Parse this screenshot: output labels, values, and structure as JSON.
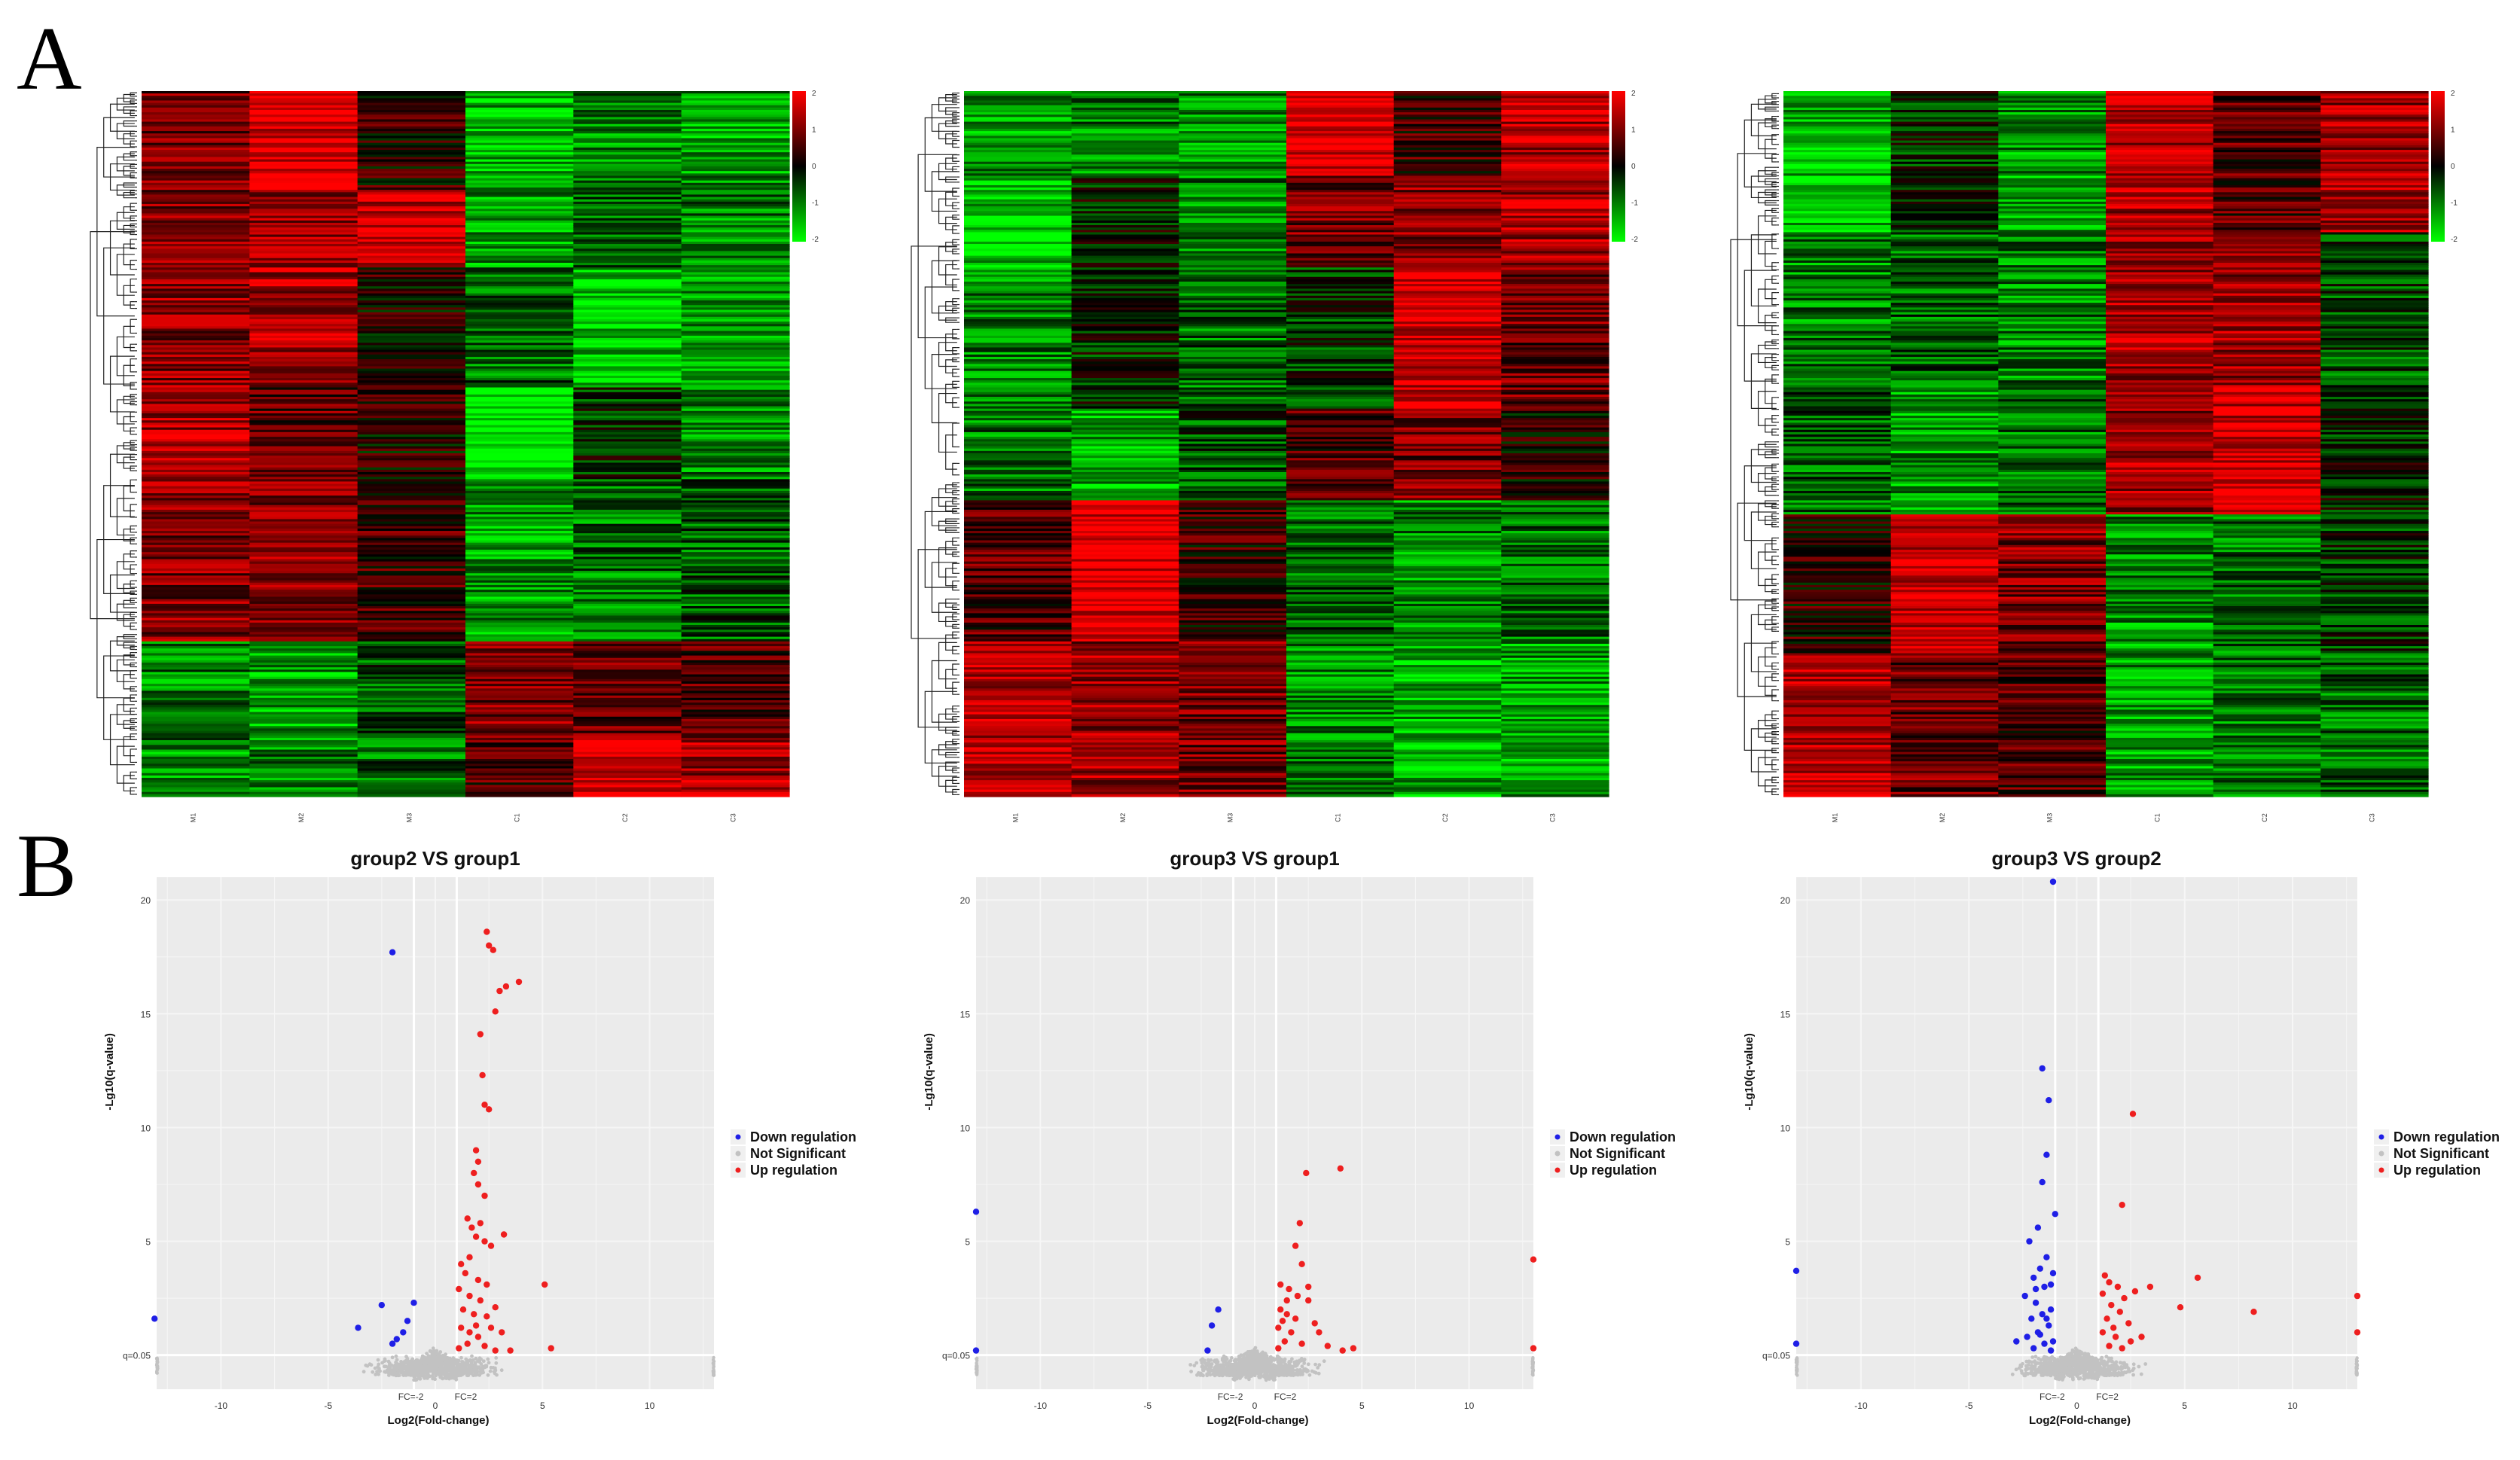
{
  "panels": {
    "a": "A",
    "b": "B"
  },
  "chart_data": [
    {
      "type": "heatmap",
      "title": "",
      "columns": [
        "M1",
        "M2",
        "M3",
        "C1",
        "C2",
        "C3"
      ],
      "color_scale": {
        "min": -2,
        "max": 2,
        "low": "#00ff00",
        "mid": "#000000",
        "high": "#ff0000"
      },
      "colorbar_ticks": [
        "2",
        "1",
        "0",
        "-1",
        "-2"
      ],
      "row_count": 300,
      "blocks": [
        {
          "rows": [
            0,
            0.14
          ],
          "values": [
            0.9,
            1.8,
            0.3,
            -1.4,
            -1.0,
            -1.2
          ]
        },
        {
          "rows": [
            0.14,
            0.25
          ],
          "values": [
            1.0,
            1.2,
            1.6,
            -1.2,
            -0.8,
            -1.0
          ]
        },
        {
          "rows": [
            0.25,
            0.42
          ],
          "values": [
            1.1,
            1.3,
            0.2,
            -0.8,
            -1.6,
            -1.3
          ]
        },
        {
          "rows": [
            0.42,
            0.55
          ],
          "values": [
            1.3,
            0.7,
            0.2,
            -2.0,
            -0.3,
            -1.1
          ]
        },
        {
          "rows": [
            0.55,
            0.78
          ],
          "values": [
            1.0,
            1.1,
            0.5,
            -1.2,
            -0.9,
            -0.7
          ]
        },
        {
          "rows": [
            0.78,
            0.92
          ],
          "values": [
            -1.0,
            -1.3,
            -0.6,
            1.0,
            0.8,
            0.6
          ]
        },
        {
          "rows": [
            0.92,
            1.0
          ],
          "values": [
            -1.2,
            -1.0,
            -0.8,
            0.5,
            1.7,
            1.3
          ]
        }
      ]
    },
    {
      "type": "heatmap",
      "title": "",
      "columns": [
        "M1",
        "M2",
        "M3",
        "C1",
        "C2",
        "C3"
      ],
      "color_scale": {
        "min": -2,
        "max": 2,
        "low": "#00ff00",
        "mid": "#000000",
        "high": "#ff0000"
      },
      "colorbar_ticks": [
        "2",
        "1",
        "0",
        "-1",
        "-2"
      ],
      "row_count": 300,
      "blocks": [
        {
          "rows": [
            0,
            0.12
          ],
          "values": [
            -1.2,
            -1.0,
            -1.1,
            1.8,
            0.5,
            1.4
          ]
        },
        {
          "rows": [
            0.12,
            0.25
          ],
          "values": [
            -1.6,
            -0.2,
            -1.0,
            0.9,
            1.1,
            1.3
          ]
        },
        {
          "rows": [
            0.25,
            0.45
          ],
          "values": [
            -1.0,
            -0.3,
            -0.8,
            -0.4,
            1.7,
            0.8
          ]
        },
        {
          "rows": [
            0.45,
            0.58
          ],
          "values": [
            -0.9,
            -1.4,
            -0.6,
            0.6,
            0.9,
            0.2
          ]
        },
        {
          "rows": [
            0.58,
            0.78
          ],
          "values": [
            0.6,
            1.8,
            0.4,
            -0.8,
            -1.1,
            -0.9
          ]
        },
        {
          "rows": [
            0.78,
            1.0
          ],
          "values": [
            1.5,
            1.2,
            0.9,
            -1.0,
            -1.4,
            -1.2
          ]
        }
      ]
    },
    {
      "type": "heatmap",
      "title": "",
      "columns": [
        "M1",
        "M2",
        "M3",
        "C1",
        "C2",
        "C3"
      ],
      "color_scale": {
        "min": -2,
        "max": 2,
        "low": "#00ff00",
        "mid": "#000000",
        "high": "#ff0000"
      },
      "colorbar_ticks": [
        "2",
        "1",
        "0",
        "-1",
        "-2"
      ],
      "row_count": 300,
      "blocks": [
        {
          "rows": [
            0,
            0.2
          ],
          "values": [
            -1.4,
            -0.3,
            -1.2,
            1.4,
            0.6,
            1.2
          ]
        },
        {
          "rows": [
            0.2,
            0.42
          ],
          "values": [
            -1.0,
            -0.8,
            -1.0,
            1.3,
            1.2,
            -0.6
          ]
        },
        {
          "rows": [
            0.42,
            0.6
          ],
          "values": [
            -0.8,
            -1.2,
            -0.9,
            1.2,
            1.6,
            -0.2
          ]
        },
        {
          "rows": [
            0.6,
            0.8
          ],
          "values": [
            0.3,
            1.6,
            1.0,
            -1.1,
            -0.9,
            -0.4
          ]
        },
        {
          "rows": [
            0.8,
            1.0
          ],
          "values": [
            1.5,
            0.8,
            0.6,
            -1.2,
            -1.0,
            -0.8
          ]
        }
      ]
    },
    {
      "type": "scatter",
      "title": "group2 VS group1",
      "xlabel": "Log2(Fold-change)",
      "ylabel": "-Lg10(q-value)",
      "xlim": [
        -13,
        13
      ],
      "ylim": [
        -1.5,
        21
      ],
      "xticks": [
        -10,
        -5,
        0,
        5,
        10
      ],
      "yticks": [
        5,
        10,
        15,
        20
      ],
      "ytick_labels": [
        "5",
        "10",
        "15",
        "20"
      ],
      "q_line": 0,
      "q_label": "q=0.05",
      "fc_lines": [
        -1,
        1
      ],
      "fc_labels": [
        "FC=-2",
        "FC=2"
      ],
      "legend": [
        "Down regulation",
        "Not Significant",
        "Up regulation"
      ],
      "series": [
        {
          "name": "Down regulation",
          "color": "#1f1fe6",
          "points": [
            [
              -2.0,
              17.7
            ],
            [
              -2.5,
              2.2
            ],
            [
              -3.6,
              1.2
            ],
            [
              -2.0,
              0.5
            ],
            [
              -1.5,
              1.0
            ],
            [
              -1.3,
              1.5
            ],
            [
              -1.8,
              0.7
            ],
            [
              -1.0,
              2.3
            ],
            [
              -13.1,
              1.6
            ]
          ]
        },
        {
          "name": "Up regulation",
          "color": "#ee1f1f",
          "points": [
            [
              2.4,
              18.6
            ],
            [
              2.7,
              17.8
            ],
            [
              2.5,
              18.0
            ],
            [
              3.0,
              16.0
            ],
            [
              3.3,
              16.2
            ],
            [
              3.9,
              16.4
            ],
            [
              2.8,
              15.1
            ],
            [
              2.1,
              14.1
            ],
            [
              2.2,
              12.3
            ],
            [
              2.3,
              11.0
            ],
            [
              2.5,
              10.8
            ],
            [
              1.9,
              9.0
            ],
            [
              2.0,
              8.5
            ],
            [
              1.8,
              8.0
            ],
            [
              2.0,
              7.5
            ],
            [
              2.3,
              7.0
            ],
            [
              1.5,
              6.0
            ],
            [
              1.7,
              5.6
            ],
            [
              2.1,
              5.8
            ],
            [
              1.9,
              5.2
            ],
            [
              2.3,
              5.0
            ],
            [
              3.2,
              5.3
            ],
            [
              2.6,
              4.8
            ],
            [
              1.6,
              4.3
            ],
            [
              1.2,
              4.0
            ],
            [
              1.4,
              3.6
            ],
            [
              2.0,
              3.3
            ],
            [
              2.4,
              3.1
            ],
            [
              1.1,
              2.9
            ],
            [
              1.6,
              2.6
            ],
            [
              2.1,
              2.4
            ],
            [
              1.3,
              2.0
            ],
            [
              1.8,
              1.8
            ],
            [
              2.4,
              1.7
            ],
            [
              2.8,
              2.1
            ],
            [
              1.2,
              1.2
            ],
            [
              1.6,
              1.0
            ],
            [
              2.0,
              0.8
            ],
            [
              1.5,
              0.5
            ],
            [
              2.3,
              0.4
            ],
            [
              1.1,
              0.3
            ],
            [
              2.8,
              0.2
            ],
            [
              3.5,
              0.2
            ],
            [
              5.4,
              0.3
            ],
            [
              5.1,
              3.1
            ],
            [
              3.1,
              1.0
            ],
            [
              1.9,
              1.3
            ],
            [
              2.6,
              1.2
            ]
          ]
        },
        {
          "name": "Not Significant",
          "color": "#bfbfbf",
          "points": []
        }
      ]
    },
    {
      "type": "scatter",
      "title": "group3 VS group1",
      "xlabel": "Log2(Fold-change)",
      "ylabel": "-Lg10(q-value)",
      "xlim": [
        -13,
        13
      ],
      "ylim": [
        -1.5,
        21
      ],
      "xticks": [
        -10,
        -5,
        0,
        5,
        10
      ],
      "yticks": [
        5,
        10,
        15,
        20
      ],
      "ytick_labels": [
        "5",
        "10",
        "15",
        "20"
      ],
      "q_line": 0,
      "q_label": "q=0.05",
      "fc_lines": [
        -1,
        1
      ],
      "fc_labels": [
        "FC=-2",
        "FC=2"
      ],
      "legend": [
        "Down regulation",
        "Not Significant",
        "Up regulation"
      ],
      "series": [
        {
          "name": "Down regulation",
          "color": "#1f1fe6",
          "points": [
            [
              -13.0,
              6.3
            ],
            [
              -1.7,
              2.0
            ],
            [
              -2.0,
              1.3
            ],
            [
              -2.2,
              0.2
            ],
            [
              -13.0,
              0.2
            ]
          ]
        },
        {
          "name": "Up regulation",
          "color": "#ee1f1f",
          "points": [
            [
              2.4,
              8.0
            ],
            [
              4.0,
              8.2
            ],
            [
              2.1,
              5.8
            ],
            [
              1.9,
              4.8
            ],
            [
              2.2,
              4.0
            ],
            [
              1.2,
              3.1
            ],
            [
              1.6,
              2.9
            ],
            [
              2.0,
              2.6
            ],
            [
              2.5,
              2.4
            ],
            [
              1.2,
              2.0
            ],
            [
              1.5,
              1.8
            ],
            [
              1.9,
              1.6
            ],
            [
              2.8,
              1.4
            ],
            [
              1.1,
              1.2
            ],
            [
              1.7,
              1.0
            ],
            [
              3.0,
              1.0
            ],
            [
              1.4,
              0.6
            ],
            [
              2.2,
              0.5
            ],
            [
              1.1,
              0.3
            ],
            [
              3.4,
              0.4
            ],
            [
              4.6,
              0.3
            ],
            [
              4.1,
              0.2
            ],
            [
              13.0,
              4.2
            ],
            [
              13.0,
              0.3
            ],
            [
              1.5,
              2.4
            ],
            [
              2.5,
              3.0
            ],
            [
              1.3,
              1.5
            ]
          ]
        },
        {
          "name": "Not Significant",
          "color": "#bfbfbf",
          "points": []
        }
      ]
    },
    {
      "type": "scatter",
      "title": "group3 VS group2",
      "xlabel": "Log2(Fold-change)",
      "ylabel": "-Lg10(q-value)",
      "xlim": [
        -13,
        13
      ],
      "ylim": [
        -1.5,
        21
      ],
      "xticks": [
        -10,
        -5,
        0,
        5,
        10
      ],
      "yticks": [
        5,
        10,
        15,
        20
      ],
      "ytick_labels": [
        "5",
        "10",
        "15",
        "20"
      ],
      "q_line": 0,
      "q_label": "q=0.05",
      "fc_lines": [
        -1,
        1
      ],
      "fc_labels": [
        "FC=-2",
        "FC=2"
      ],
      "legend": [
        "Down regulation",
        "Not Significant",
        "Up regulation"
      ],
      "series": [
        {
          "name": "Down regulation",
          "color": "#1f1fe6",
          "points": [
            [
              -1.1,
              20.8
            ],
            [
              -1.6,
              12.6
            ],
            [
              -1.3,
              11.2
            ],
            [
              -1.4,
              8.8
            ],
            [
              -1.6,
              7.6
            ],
            [
              -1.0,
              6.2
            ],
            [
              -1.8,
              5.6
            ],
            [
              -2.2,
              5.0
            ],
            [
              -1.4,
              4.3
            ],
            [
              -1.7,
              3.8
            ],
            [
              -2.0,
              3.4
            ],
            [
              -1.2,
              3.1
            ],
            [
              -1.5,
              3.0
            ],
            [
              -2.4,
              2.6
            ],
            [
              -1.9,
              2.3
            ],
            [
              -1.2,
              2.0
            ],
            [
              -1.6,
              1.8
            ],
            [
              -2.1,
              1.6
            ],
            [
              -1.3,
              1.3
            ],
            [
              -1.8,
              1.0
            ],
            [
              -2.3,
              0.8
            ],
            [
              -1.1,
              0.6
            ],
            [
              -1.5,
              0.5
            ],
            [
              -2.0,
              0.3
            ],
            [
              -1.2,
              0.2
            ],
            [
              -2.8,
              0.6
            ],
            [
              -13.0,
              3.7
            ],
            [
              -13.0,
              0.5
            ],
            [
              -1.4,
              1.6
            ],
            [
              -1.9,
              2.9
            ],
            [
              -1.1,
              3.6
            ],
            [
              -1.7,
              0.9
            ]
          ]
        },
        {
          "name": "Up regulation",
          "color": "#ee1f1f",
          "points": [
            [
              2.6,
              10.6
            ],
            [
              2.1,
              6.6
            ],
            [
              1.3,
              3.5
            ],
            [
              1.5,
              3.2
            ],
            [
              1.9,
              3.0
            ],
            [
              1.2,
              2.7
            ],
            [
              2.2,
              2.5
            ],
            [
              3.4,
              3.0
            ],
            [
              1.6,
              2.2
            ],
            [
              2.0,
              1.9
            ],
            [
              1.4,
              1.6
            ],
            [
              2.4,
              1.4
            ],
            [
              1.2,
              1.0
            ],
            [
              1.8,
              0.8
            ],
            [
              2.5,
              0.6
            ],
            [
              1.5,
              0.4
            ],
            [
              2.1,
              0.3
            ],
            [
              3.0,
              0.8
            ],
            [
              4.8,
              2.1
            ],
            [
              5.6,
              3.4
            ],
            [
              8.2,
              1.9
            ],
            [
              13.0,
              2.6
            ],
            [
              13.0,
              1.0
            ],
            [
              1.7,
              1.2
            ],
            [
              2.7,
              2.8
            ]
          ]
        },
        {
          "name": "Not Significant",
          "color": "#bfbfbf",
          "points": []
        }
      ]
    }
  ]
}
